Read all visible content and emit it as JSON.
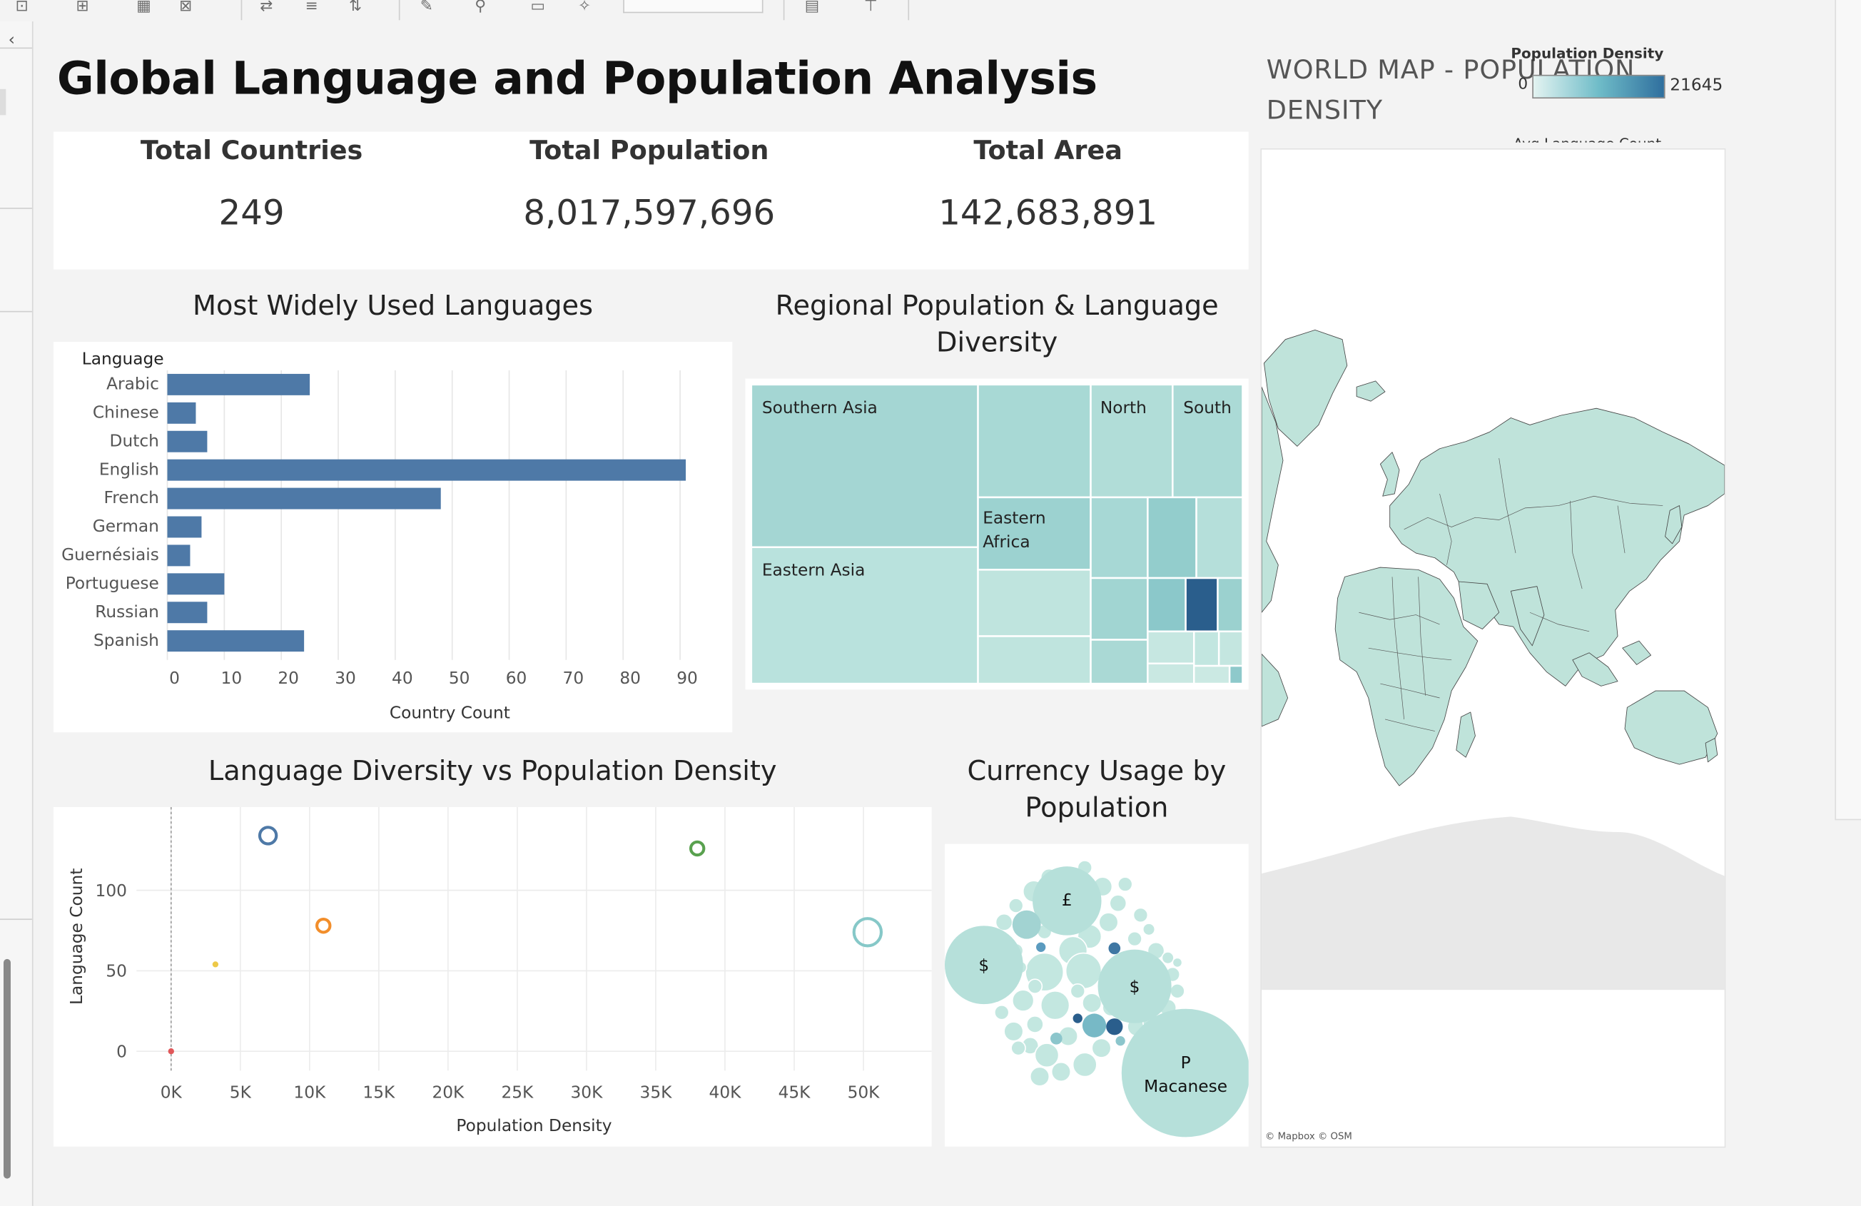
{
  "dashboard": {
    "title": "Global Language and Population Analysis"
  },
  "kpis": [
    {
      "label": "Total Countries",
      "value": "249"
    },
    {
      "label": "Total Population",
      "value": "8,017,597,696"
    },
    {
      "label": "Total Area",
      "value": "142,683,891"
    }
  ],
  "bar_chart": {
    "title": "Most Widely Used Languages",
    "column_header": "Language",
    "xlabel": "Country Count",
    "ticks": [
      "0",
      "10",
      "20",
      "30",
      "40",
      "50",
      "60",
      "70",
      "80",
      "90"
    ]
  },
  "treemap": {
    "title": "Regional Population & Language Diversity",
    "labels": {
      "southern_asia": "Southern Asia",
      "eastern_asia": "Eastern Asia",
      "north": "North",
      "south": "South",
      "eastern_africa": "Eastern Africa"
    }
  },
  "scatter": {
    "title": "Language Diversity vs Population Density",
    "xlabel": "Population Density",
    "ylabel": "Language Count",
    "xticks": [
      "0K",
      "5K",
      "10K",
      "15K",
      "20K",
      "25K",
      "30K",
      "35K",
      "40K",
      "45K",
      "50K"
    ],
    "yticks": [
      "0",
      "50",
      "100"
    ]
  },
  "bubble": {
    "title": "Currency Usage by Population",
    "labels": {
      "pound": "£",
      "dollar_left": "$",
      "dollar_right": "$",
      "pataca_symbol": "P",
      "pataca_name": "Macanese"
    }
  },
  "map": {
    "title": "WORLD MAP - POPULATION DENSITY",
    "legend_title": "Population Density",
    "legend_min": "0",
    "legend_max": "21645",
    "legend_cut_label": "Avg Language Count",
    "credit": "© Mapbox © OSM",
    "colors": {
      "land": "#bfe3da",
      "antarctica": "#e8e8e8"
    }
  },
  "chart_data": [
    {
      "type": "bar",
      "title": "Most Widely Used Languages",
      "xlabel": "Country Count",
      "ylabel": "Language",
      "categories": [
        "Arabic",
        "Chinese",
        "Dutch",
        "English",
        "French",
        "German",
        "Guernésiais",
        "Portuguese",
        "Russian",
        "Spanish"
      ],
      "values": [
        25,
        5,
        7,
        91,
        48,
        6,
        4,
        10,
        7,
        24
      ],
      "xlim": [
        0,
        95
      ],
      "color": "#4e79a7"
    },
    {
      "type": "treemap",
      "title": "Regional Population & Language Diversity",
      "labels": [
        "Southern Asia",
        "Eastern Asia",
        "North",
        "South",
        "Eastern Africa"
      ]
    },
    {
      "type": "scatter",
      "title": "Language Diversity vs Population Density",
      "xlabel": "Population Density",
      "ylabel": "Language Count",
      "xlim": [
        -2500,
        54500
      ],
      "ylim": [
        -12,
        148
      ],
      "points": [
        {
          "x": 7000,
          "y": 134,
          "color": "#4e79a7",
          "size": "medium"
        },
        {
          "x": 38000,
          "y": 126,
          "color": "#59a14f",
          "size": "small"
        },
        {
          "x": 11000,
          "y": 78,
          "color": "#f28e2b",
          "size": "small"
        },
        {
          "x": 50300,
          "y": 74,
          "color": "#86c8c8",
          "size": "large"
        },
        {
          "x": 3200,
          "y": 54,
          "color": "#edc948",
          "size": "tiny"
        },
        {
          "x": 0,
          "y": 0,
          "color": "#e15759",
          "size": "tiny"
        }
      ]
    },
    {
      "type": "bubble",
      "title": "Currency Usage by Population",
      "labels": [
        "£",
        "$",
        "$",
        "P",
        "Macanese"
      ]
    },
    {
      "type": "map",
      "title": "WORLD MAP - POPULATION DENSITY",
      "legend": {
        "title": "Population Density",
        "min": 0,
        "max": 21645
      }
    }
  ]
}
